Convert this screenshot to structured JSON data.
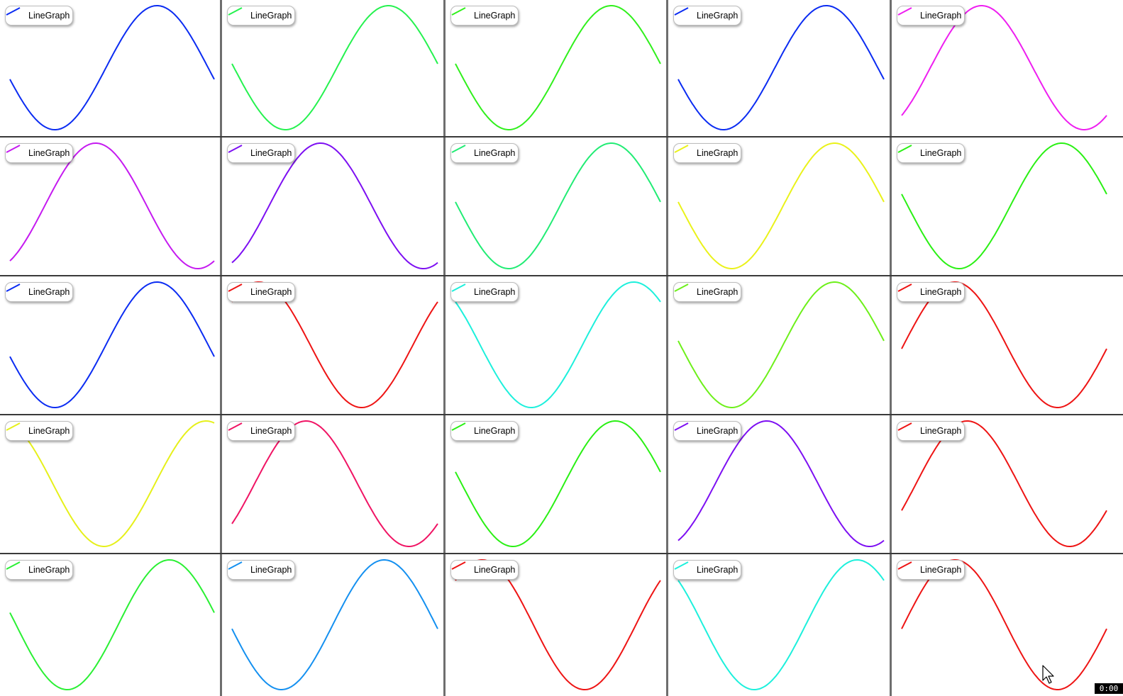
{
  "timer": "0:00",
  "chart_data": [
    {
      "type": "line",
      "legend": "LineGraph",
      "color": "#0b2cf2",
      "phase": 0.28,
      "r": 0,
      "c": 0
    },
    {
      "type": "line",
      "legend": "LineGraph",
      "color": "#25f24f",
      "phase": 0.24,
      "r": 0,
      "c": 1
    },
    {
      "type": "line",
      "legend": "LineGraph",
      "color": "#30f01c",
      "phase": 0.24,
      "r": 0,
      "c": 2
    },
    {
      "type": "line",
      "legend": "LineGraph",
      "color": "#0b2cf2",
      "phase": 0.28,
      "r": 0,
      "c": 3
    },
    {
      "type": "line",
      "legend": "LineGraph",
      "color": "#ee1ef0",
      "phase": 0.61,
      "r": 0,
      "c": 4
    },
    {
      "type": "line",
      "legend": "LineGraph",
      "color": "#c51af0",
      "phase": 0.58,
      "r": 1,
      "c": 0
    },
    {
      "type": "line",
      "legend": "LineGraph",
      "color": "#7d0ff2",
      "phase": 0.57,
      "r": 1,
      "c": 1
    },
    {
      "type": "line",
      "legend": "LineGraph",
      "color": "#21ec74",
      "phase": 0.24,
      "r": 1,
      "c": 2
    },
    {
      "type": "line",
      "legend": "LineGraph",
      "color": "#eaf21a",
      "phase": 0.24,
      "r": 1,
      "c": 3
    },
    {
      "type": "line",
      "legend": "LineGraph",
      "color": "#2af014",
      "phase": 0.22,
      "r": 1,
      "c": 4
    },
    {
      "type": "line",
      "legend": "LineGraph",
      "color": "#0b2cf2",
      "phase": 0.28,
      "r": 2,
      "c": 0
    },
    {
      "type": "line",
      "legend": "LineGraph",
      "color": "#ee1414",
      "phase": 0.87,
      "r": 2,
      "c": 1
    },
    {
      "type": "line",
      "legend": "LineGraph",
      "color": "#1df0dc",
      "phase": 0.13,
      "r": 2,
      "c": 2
    },
    {
      "type": "line",
      "legend": "LineGraph",
      "color": "#6df01a",
      "phase": 0.24,
      "r": 2,
      "c": 3
    },
    {
      "type": "line",
      "legend": "LineGraph",
      "color": "#ee1414",
      "phase": 0.74,
      "r": 2,
      "c": 4
    },
    {
      "type": "line",
      "legend": "LineGraph",
      "color": "#e6f01a",
      "phase": 0.04,
      "r": 3,
      "c": 0
    },
    {
      "type": "line",
      "legend": "LineGraph",
      "color": "#f01464",
      "phase": 0.64,
      "r": 3,
      "c": 1
    },
    {
      "type": "line",
      "legend": "LineGraph",
      "color": "#2af014",
      "phase": 0.22,
      "r": 3,
      "c": 2
    },
    {
      "type": "line",
      "legend": "LineGraph",
      "color": "#7d0ff2",
      "phase": 0.57,
      "r": 3,
      "c": 3
    },
    {
      "type": "line",
      "legend": "LineGraph",
      "color": "#ee1414",
      "phase": 0.68,
      "r": 3,
      "c": 4
    },
    {
      "type": "line",
      "legend": "LineGraph",
      "color": "#2af034",
      "phase": 0.22,
      "r": 4,
      "c": 0
    },
    {
      "type": "line",
      "legend": "LineGraph",
      "color": "#1490f0",
      "phase": 0.26,
      "r": 4,
      "c": 1
    },
    {
      "type": "line",
      "legend": "LineGraph",
      "color": "#ee1414",
      "phase": 0.87,
      "r": 4,
      "c": 2
    },
    {
      "type": "line",
      "legend": "LineGraph",
      "color": "#1df0dc",
      "phase": 0.13,
      "r": 4,
      "c": 3
    },
    {
      "type": "line",
      "legend": "LineGraph",
      "color": "#ee1414",
      "phase": 0.74,
      "r": 4,
      "c": 4
    }
  ]
}
